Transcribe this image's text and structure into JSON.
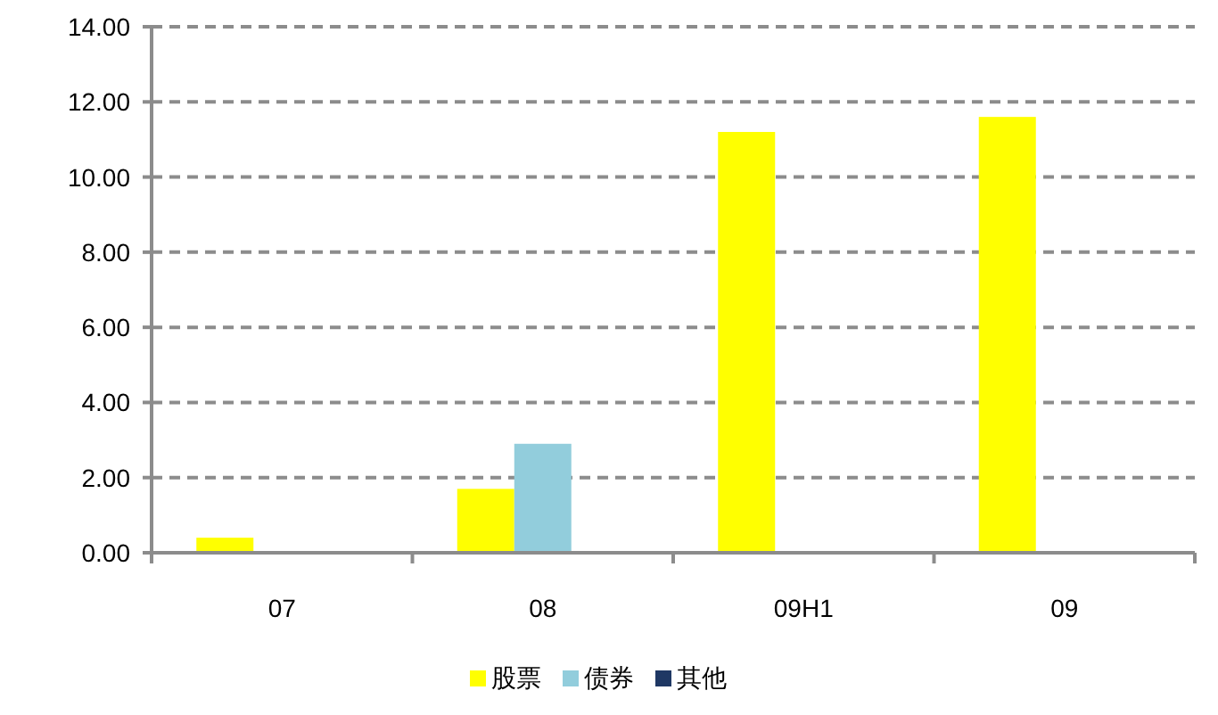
{
  "chart_data": {
    "type": "bar",
    "categories": [
      "07",
      "08",
      "09H1",
      "09"
    ],
    "series": [
      {
        "name": "股票",
        "color": "#ffff00",
        "values": [
          0.4,
          1.7,
          11.2,
          11.6
        ]
      },
      {
        "name": "债券",
        "color": "#92cddc",
        "values": [
          0,
          2.9,
          0,
          0
        ]
      },
      {
        "name": "其他",
        "color": "#1f3864",
        "values": [
          0,
          0,
          0,
          0
        ]
      }
    ],
    "ylim": [
      0,
      14
    ],
    "yticks": [
      {
        "value": 0,
        "label": "0.00"
      },
      {
        "value": 2,
        "label": "2.00"
      },
      {
        "value": 4,
        "label": "4.00"
      },
      {
        "value": 6,
        "label": "6.00"
      },
      {
        "value": 8,
        "label": "8.00"
      },
      {
        "value": 10,
        "label": "10.00"
      },
      {
        "value": 12,
        "label": "12.00"
      },
      {
        "value": 14,
        "label": "14.00"
      }
    ],
    "grid": "y",
    "legend": "bottom"
  }
}
